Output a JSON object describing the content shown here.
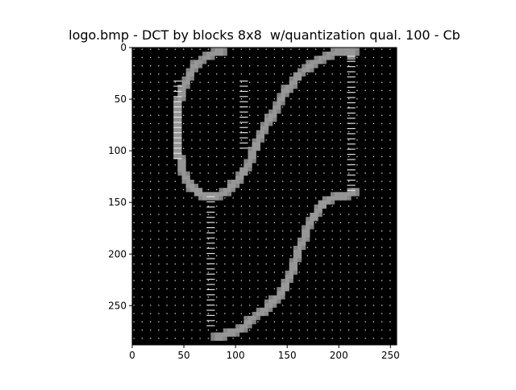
{
  "window": {
    "title": "logo.bmp - DCT by blocks 8x8  w/quantization qual. 100 - Cb"
  },
  "chart_data": {
    "type": "heatmap",
    "title": "logo.bmp - DCT by blocks 8x8  w/quantization qual. 100 - Cb",
    "xlabel": "",
    "ylabel": "",
    "xlim": [
      0,
      256
    ],
    "ylim": [
      288,
      0
    ],
    "x_ticks": [
      "0",
      "50",
      "100",
      "150",
      "200",
      "250"
    ],
    "y_ticks": [
      "0",
      "50",
      "100",
      "150",
      "200",
      "250"
    ],
    "block_size": 8,
    "colormap": "gray",
    "background_color": "#000000",
    "stroke_color": "#9a9a9a",
    "grid": false
  }
}
